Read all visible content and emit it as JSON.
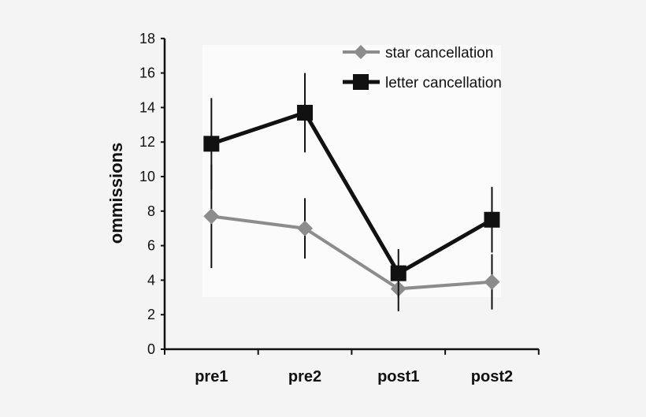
{
  "chart_data": {
    "type": "line",
    "title": "",
    "xlabel": "",
    "ylabel": "ommissions",
    "categories": [
      "pre1",
      "pre2",
      "post1",
      "post2"
    ],
    "ylim": [
      0,
      18
    ],
    "yticks": [
      0,
      2,
      4,
      6,
      8,
      10,
      12,
      14,
      16,
      18
    ],
    "grid": false,
    "legend_position": "top-right",
    "series": [
      {
        "name": "star cancellation",
        "marker": "diamond",
        "color": "#8c8c8c",
        "values": [
          7.7,
          7.0,
          3.5,
          3.9
        ],
        "error": [
          3.0,
          1.75,
          1.3,
          1.6
        ]
      },
      {
        "name": "letter cancellation",
        "marker": "square",
        "color": "#111111",
        "values": [
          11.9,
          13.7,
          4.4,
          7.5
        ],
        "error": [
          2.65,
          2.3,
          1.4,
          1.9
        ]
      }
    ]
  }
}
